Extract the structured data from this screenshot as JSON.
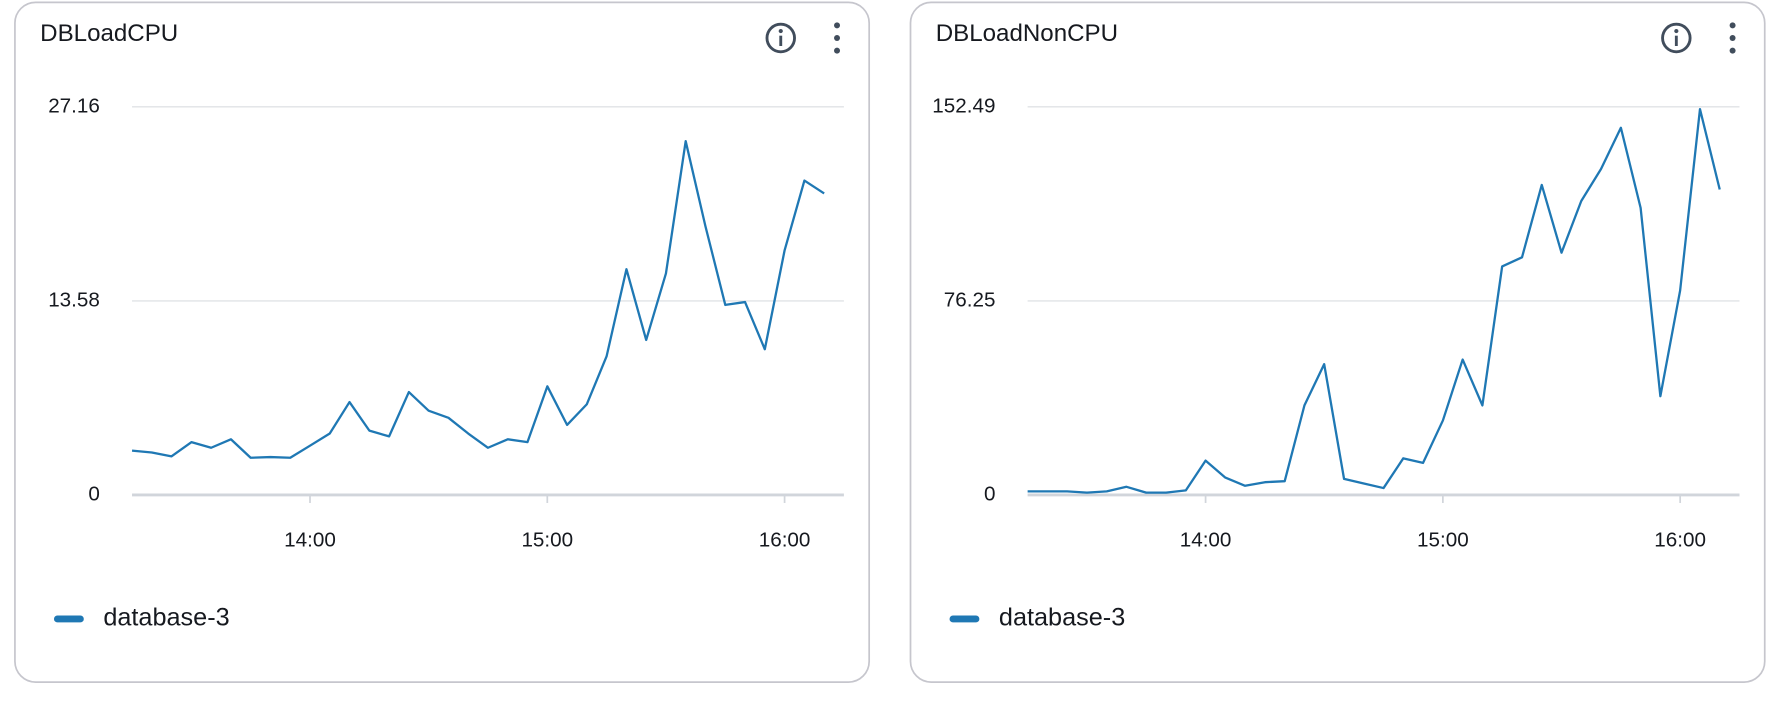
{
  "chart_data": [
    {
      "type": "line",
      "title": "DBLoadCPU",
      "x": [
        "13:15",
        "13:20",
        "13:25",
        "13:30",
        "13:35",
        "13:40",
        "13:45",
        "13:50",
        "13:55",
        "14:00",
        "14:05",
        "14:10",
        "14:15",
        "14:20",
        "14:25",
        "14:30",
        "14:35",
        "14:40",
        "14:45",
        "14:50",
        "14:55",
        "15:00",
        "15:05",
        "15:10",
        "15:15",
        "15:20",
        "15:25",
        "15:30",
        "15:35",
        "15:40",
        "15:45",
        "15:50",
        "15:55",
        "16:00",
        "16:05",
        "16:10"
      ],
      "series": [
        {
          "name": "database-3",
          "color": "#1f78b4",
          "values": [
            3.1,
            2.97,
            2.7,
            3.7,
            3.3,
            3.9,
            2.6,
            2.65,
            2.6,
            3.45,
            4.3,
            6.5,
            4.5,
            4.1,
            7.2,
            5.9,
            5.4,
            4.3,
            3.3,
            3.9,
            3.7,
            7.6,
            4.9,
            6.35,
            9.7,
            15.8,
            10.85,
            15.5,
            24.76,
            18.8,
            13.3,
            13.5,
            10.2,
            17.1,
            22.0,
            21.1
          ]
        }
      ],
      "xlim": [
        "13:15",
        "16:15"
      ],
      "xticks": [
        "14:00",
        "15:00",
        "16:00"
      ],
      "ylim": [
        0,
        27.16
      ],
      "yticks": [
        0,
        13.58,
        27.16
      ],
      "grid": true
    },
    {
      "type": "line",
      "title": "DBLoadNonCPU",
      "x": [
        "13:15",
        "13:20",
        "13:25",
        "13:30",
        "13:35",
        "13:40",
        "13:45",
        "13:50",
        "13:55",
        "14:00",
        "14:05",
        "14:10",
        "14:15",
        "14:20",
        "14:25",
        "14:30",
        "14:35",
        "14:40",
        "14:45",
        "14:50",
        "14:55",
        "15:00",
        "15:05",
        "15:10",
        "15:15",
        "15:20",
        "15:25",
        "15:30",
        "15:35",
        "15:40",
        "15:45",
        "15:50",
        "15:55",
        "16:00",
        "16:05",
        "16:10"
      ],
      "series": [
        {
          "name": "database-3",
          "color": "#1f78b4",
          "values": [
            1.4,
            1.4,
            1.4,
            0.9,
            1.4,
            3.2,
            0.9,
            0.9,
            1.8,
            13.5,
            6.8,
            3.6,
            5.0,
            5.4,
            35.2,
            51.4,
            6.3,
            4.5,
            2.7,
            14.4,
            12.6,
            29.3,
            53.2,
            35.2,
            89.8,
            93.4,
            121.8,
            95.2,
            115.5,
            128.1,
            144.3,
            112.8,
            38.8,
            80.3,
            151.6,
            120.0
          ]
        }
      ],
      "xlim": [
        "13:15",
        "16:15"
      ],
      "xticks": [
        "14:00",
        "15:00",
        "16:00"
      ],
      "ylim": [
        0,
        152.49
      ],
      "yticks": [
        0,
        76.25,
        152.49
      ],
      "grid": true
    }
  ]
}
